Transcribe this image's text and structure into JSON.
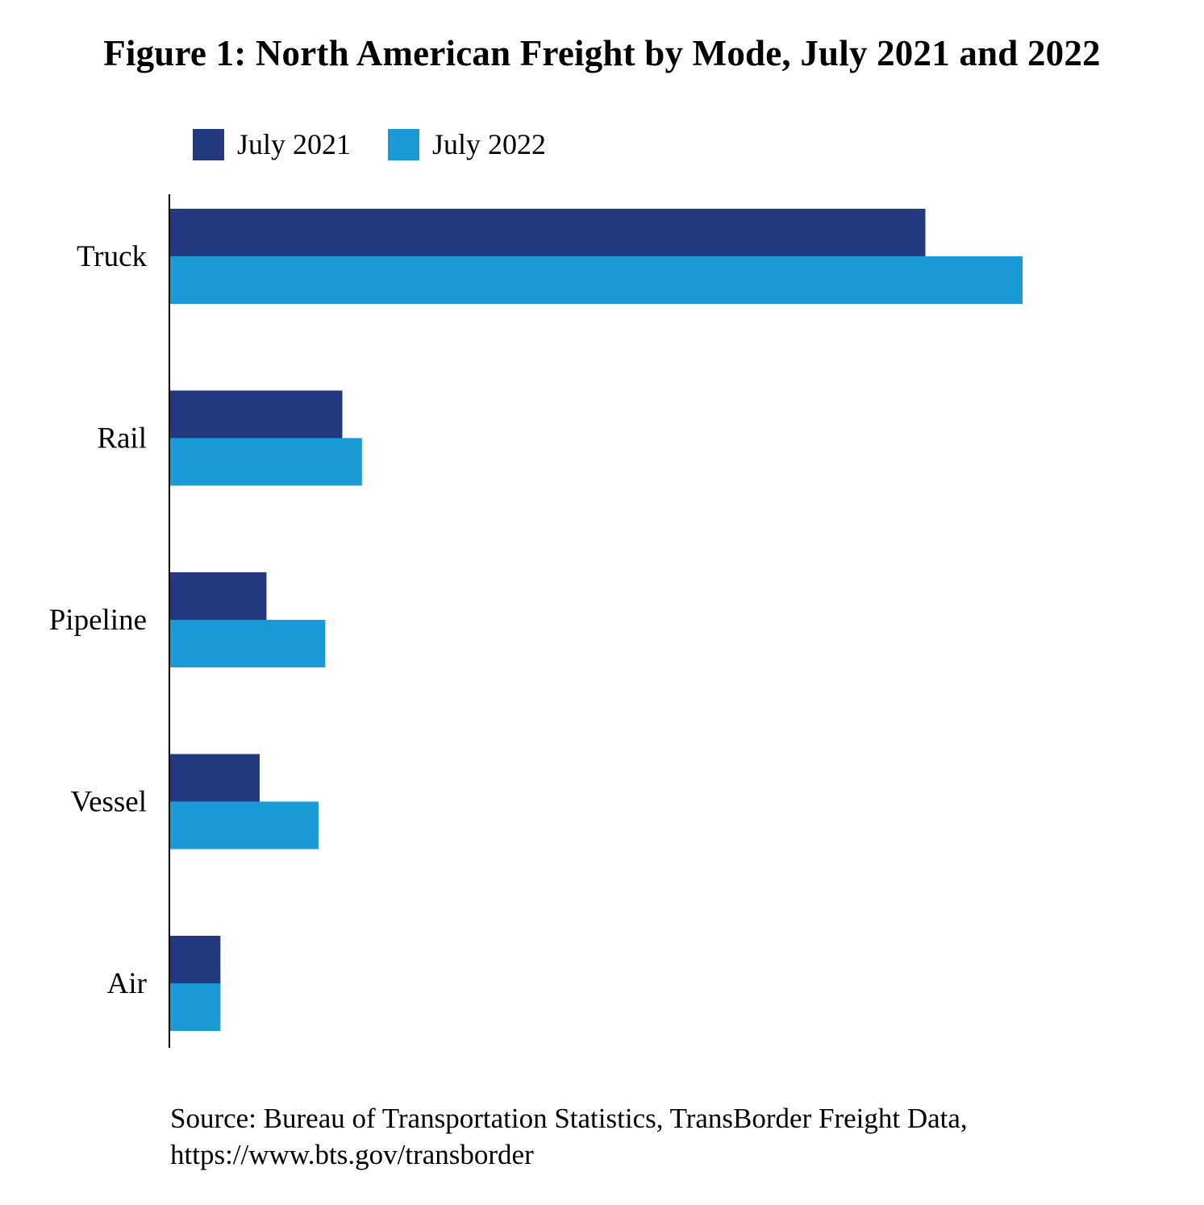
{
  "chart_data": {
    "type": "bar",
    "orientation": "horizontal",
    "title": "Figure 1: North American Freight by Mode, July 2021 and 2022",
    "categories": [
      "Truck",
      "Rail",
      "Pipeline",
      "Vessel",
      "Air"
    ],
    "series": [
      {
        "name": "July 2021",
        "color": "#243a80",
        "values": [
          88.6,
          20.2,
          11.3,
          10.5,
          5.9
        ]
      },
      {
        "name": "July 2022",
        "color": "#1a9ad6",
        "values": [
          100,
          22.5,
          18.2,
          17.4,
          5.9
        ]
      }
    ],
    "value_units": "relative (Truck July 2022 = 100; no axis scale shown)",
    "xlabel": "",
    "ylabel": "",
    "xlim": [
      0,
      113
    ],
    "grid": false,
    "legend_position": "top-left",
    "source": "Source: Bureau of Transportation Statistics, TransBorder Freight Data,",
    "source_url": "https://www.bts.gov/transborder"
  }
}
